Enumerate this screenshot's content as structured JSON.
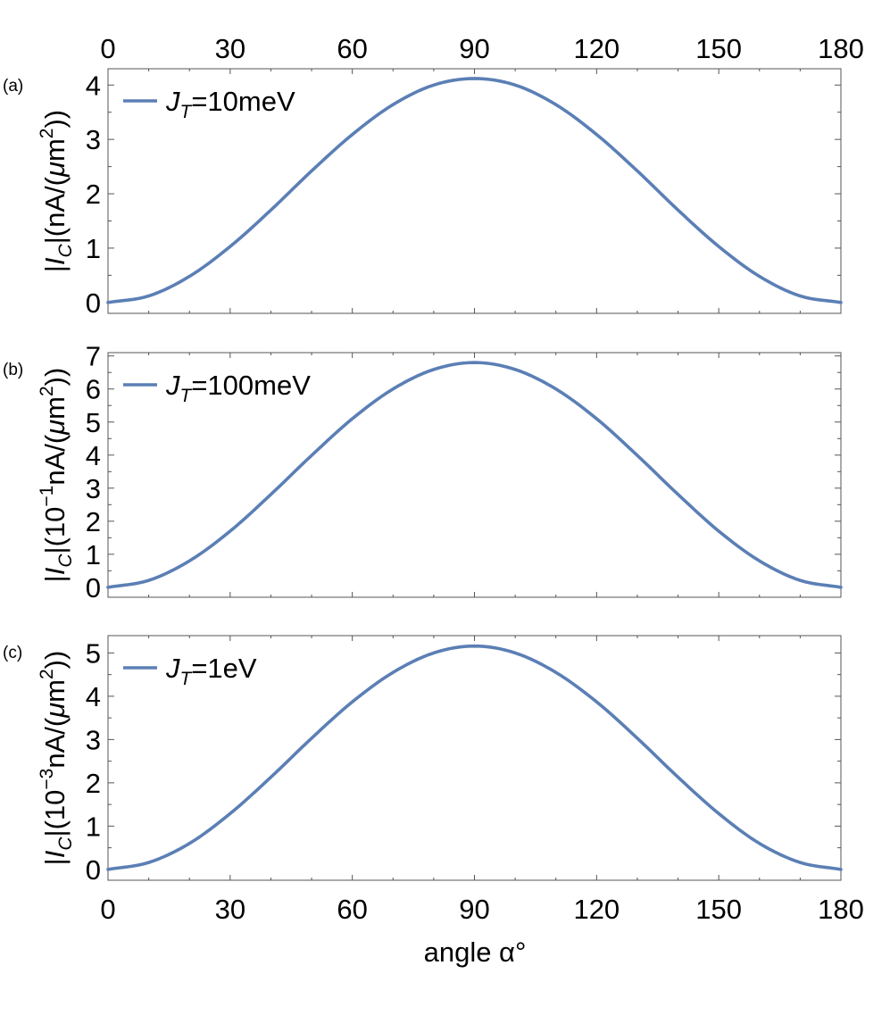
{
  "colors": {
    "series": "#5b7fb5",
    "frame": "#555555"
  },
  "figure": {
    "top_tick_labels": [
      "0",
      "30",
      "60",
      "90",
      "120",
      "150",
      "180"
    ],
    "xlabel": "angle α°"
  },
  "chart_data": [
    {
      "type": "line",
      "panel": "(a)",
      "ylabel": "|I_C|(nA/(μm²))",
      "ylabel_parts": {
        "italic": "I",
        "sub": "C",
        "pre": "|",
        "mid": "|(",
        "exp": "",
        "tail_a": "nA/(",
        "mu": "μ",
        "tail_b": "m",
        "sup": "2",
        "end": "))"
      },
      "xlim": [
        0,
        180
      ],
      "ylim": [
        -0.2,
        4.3
      ],
      "x_ticks": [
        0,
        30,
        60,
        90,
        120,
        150,
        180
      ],
      "y_ticks": [
        0,
        1,
        2,
        3,
        4
      ],
      "legend": {
        "J": "J",
        "sub": "T",
        "rest": "=10meV"
      },
      "series": [
        {
          "name": "J_T=10meV",
          "x": [
            0,
            10,
            20,
            30,
            40,
            50,
            60,
            70,
            80,
            90,
            100,
            110,
            120,
            130,
            140,
            150,
            160,
            170,
            180
          ],
          "y": [
            0.0,
            0.12,
            0.48,
            1.03,
            1.7,
            2.42,
            3.09,
            3.64,
            4.0,
            4.12,
            4.0,
            3.64,
            3.09,
            2.42,
            1.7,
            1.03,
            0.48,
            0.12,
            0.0
          ]
        }
      ]
    },
    {
      "type": "line",
      "panel": "(b)",
      "ylabel": "|I_C|(10^-1 nA/(μm²))",
      "ylabel_parts": {
        "italic": "I",
        "sub": "C",
        "pre": "|",
        "mid": "|(10",
        "exp": "−1",
        "tail_a": "nA/(",
        "mu": "μ",
        "tail_b": "m",
        "sup": "2",
        "end": "))"
      },
      "xlim": [
        0,
        180
      ],
      "ylim": [
        -0.3,
        7.1
      ],
      "x_ticks": [
        0,
        30,
        60,
        90,
        120,
        150,
        180
      ],
      "y_ticks": [
        0,
        1,
        2,
        3,
        4,
        5,
        6,
        7
      ],
      "legend": {
        "J": "J",
        "sub": "T",
        "rest": "=100meV"
      },
      "series": [
        {
          "name": "J_T=100meV",
          "x": [
            0,
            10,
            20,
            30,
            40,
            50,
            60,
            70,
            80,
            90,
            100,
            110,
            120,
            130,
            140,
            150,
            160,
            170,
            180
          ],
          "y": [
            0.0,
            0.21,
            0.8,
            1.7,
            2.81,
            3.99,
            5.1,
            6.0,
            6.59,
            6.8,
            6.59,
            6.0,
            5.1,
            3.99,
            2.81,
            1.7,
            0.8,
            0.21,
            0.0
          ]
        }
      ]
    },
    {
      "type": "line",
      "panel": "(c)",
      "ylabel": "|I_C|(10^-3 nA/(μm²))",
      "ylabel_parts": {
        "italic": "I",
        "sub": "C",
        "pre": "|",
        "mid": "|(10",
        "exp": "−3",
        "tail_a": "nA/(",
        "mu": "μ",
        "tail_b": "m",
        "sup": "2",
        "end": "))"
      },
      "xlim": [
        0,
        180
      ],
      "ylim": [
        -0.25,
        5.4
      ],
      "x_ticks": [
        0,
        30,
        60,
        90,
        120,
        150,
        180
      ],
      "y_ticks": [
        0,
        1,
        2,
        3,
        4,
        5
      ],
      "legend": {
        "J": "J",
        "sub": "T",
        "rest": "=1eV"
      },
      "series": [
        {
          "name": "J_T=1eV",
          "x": [
            0,
            10,
            20,
            30,
            40,
            50,
            60,
            70,
            80,
            90,
            100,
            110,
            120,
            130,
            140,
            150,
            160,
            170,
            180
          ],
          "y": [
            0.0,
            0.16,
            0.6,
            1.29,
            2.13,
            3.03,
            3.87,
            4.55,
            5.0,
            5.16,
            5.0,
            4.55,
            3.87,
            3.03,
            2.13,
            1.29,
            0.6,
            0.16,
            0.0
          ]
        }
      ]
    }
  ]
}
